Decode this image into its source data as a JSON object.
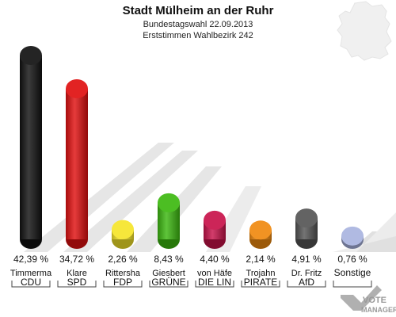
{
  "chart_data": {
    "type": "bar",
    "title": "Stadt Mülheim an der Ruhr",
    "subtitle_1": "Bundestagswahl 22.09.2013",
    "subtitle_2": "Erststimmen Wahlbezirk 242",
    "categories": [
      "CDU",
      "SPD",
      "FDP",
      "GRÜNE",
      "DIE LIN",
      "PIRATE",
      "AfD",
      "Sonstige"
    ],
    "candidates": [
      "Timmerma",
      "Klare",
      "Rittersha",
      "Giesbert",
      "von Häfe",
      "Trojahn",
      "Dr. Fritz",
      ""
    ],
    "values": [
      42.39,
      34.72,
      2.26,
      8.43,
      4.4,
      2.14,
      4.91,
      0.76
    ],
    "value_labels": [
      "42,39 %",
      "34,72 %",
      "2,26 %",
      "8,43 %",
      "4,40 %",
      "2,14 %",
      "4,91 %",
      "0,76 %"
    ],
    "colors": [
      "#111111",
      "#e01010",
      "#f5e52a",
      "#3cb810",
      "#c8124a",
      "#f08a10",
      "#555555",
      "#a9b4e0"
    ],
    "ylim": [
      0,
      42.39
    ],
    "grid": false,
    "legend": "none"
  },
  "logo": {
    "line1": "VOTE",
    "line2": "MANAGER"
  }
}
